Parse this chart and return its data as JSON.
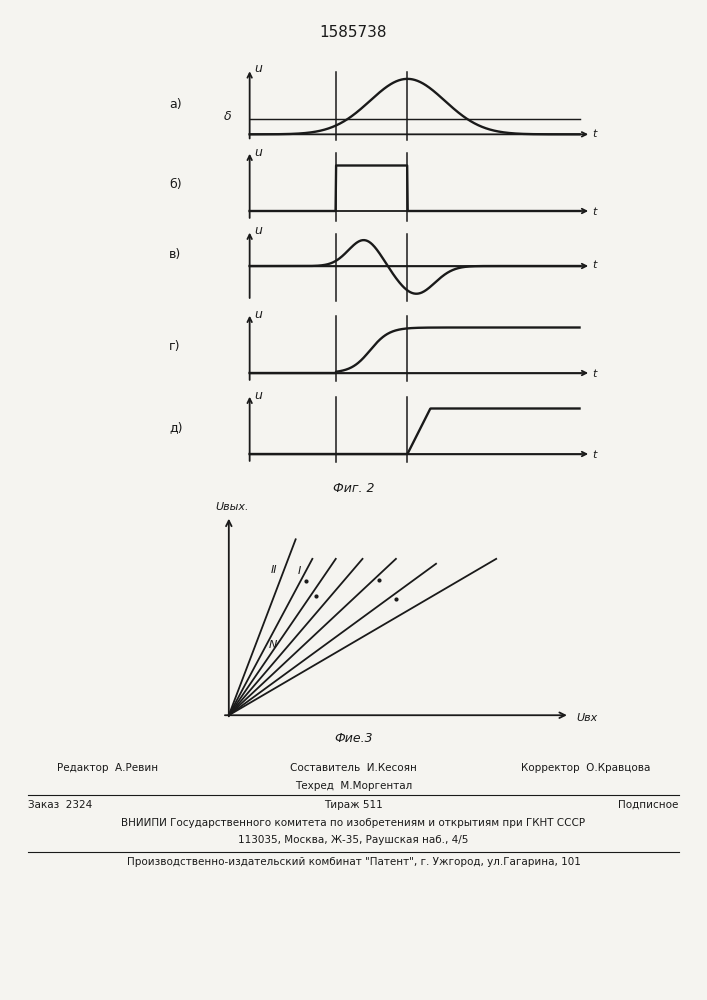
{
  "title": "1585738",
  "fig2_label": "Фиг. 2",
  "fig3_label": "Фие.3",
  "subplot_labels": [
    "а)",
    "б)",
    "в)",
    "г)",
    "д)"
  ],
  "delta_label": "δ",
  "u_label": "u",
  "t_label": "t",
  "u_vyx_label": "Uвых.",
  "u_vx_label": "Uвх",
  "II_label": "II",
  "I_label": "I",
  "N_label": "N",
  "footer_line1_left": "Редактор  А.Ревин",
  "footer_line1_center1": "Составитель  И.Кесоян",
  "footer_line1_center2": "Техред  М.Моргентал",
  "footer_line1_right": "Корректор  О.Кравцова",
  "footer_line2_left": "Заказ  2324",
  "footer_line2_center": "Тираж 511",
  "footer_line2_right": "Подписное",
  "footer_line3": "ВНИИПИ Государственного комитета по изобретениям и открытиям при ГКНТ СССР",
  "footer_line4": "113035, Москва, Ж-35, Раушская наб., 4/5",
  "footer_line5": "Производственно-издательский комбинат \"Патент\", г. Ужгород, ул.Гагарина, 101",
  "bg_color": "#f5f4f0",
  "line_color": "#1a1a1a"
}
